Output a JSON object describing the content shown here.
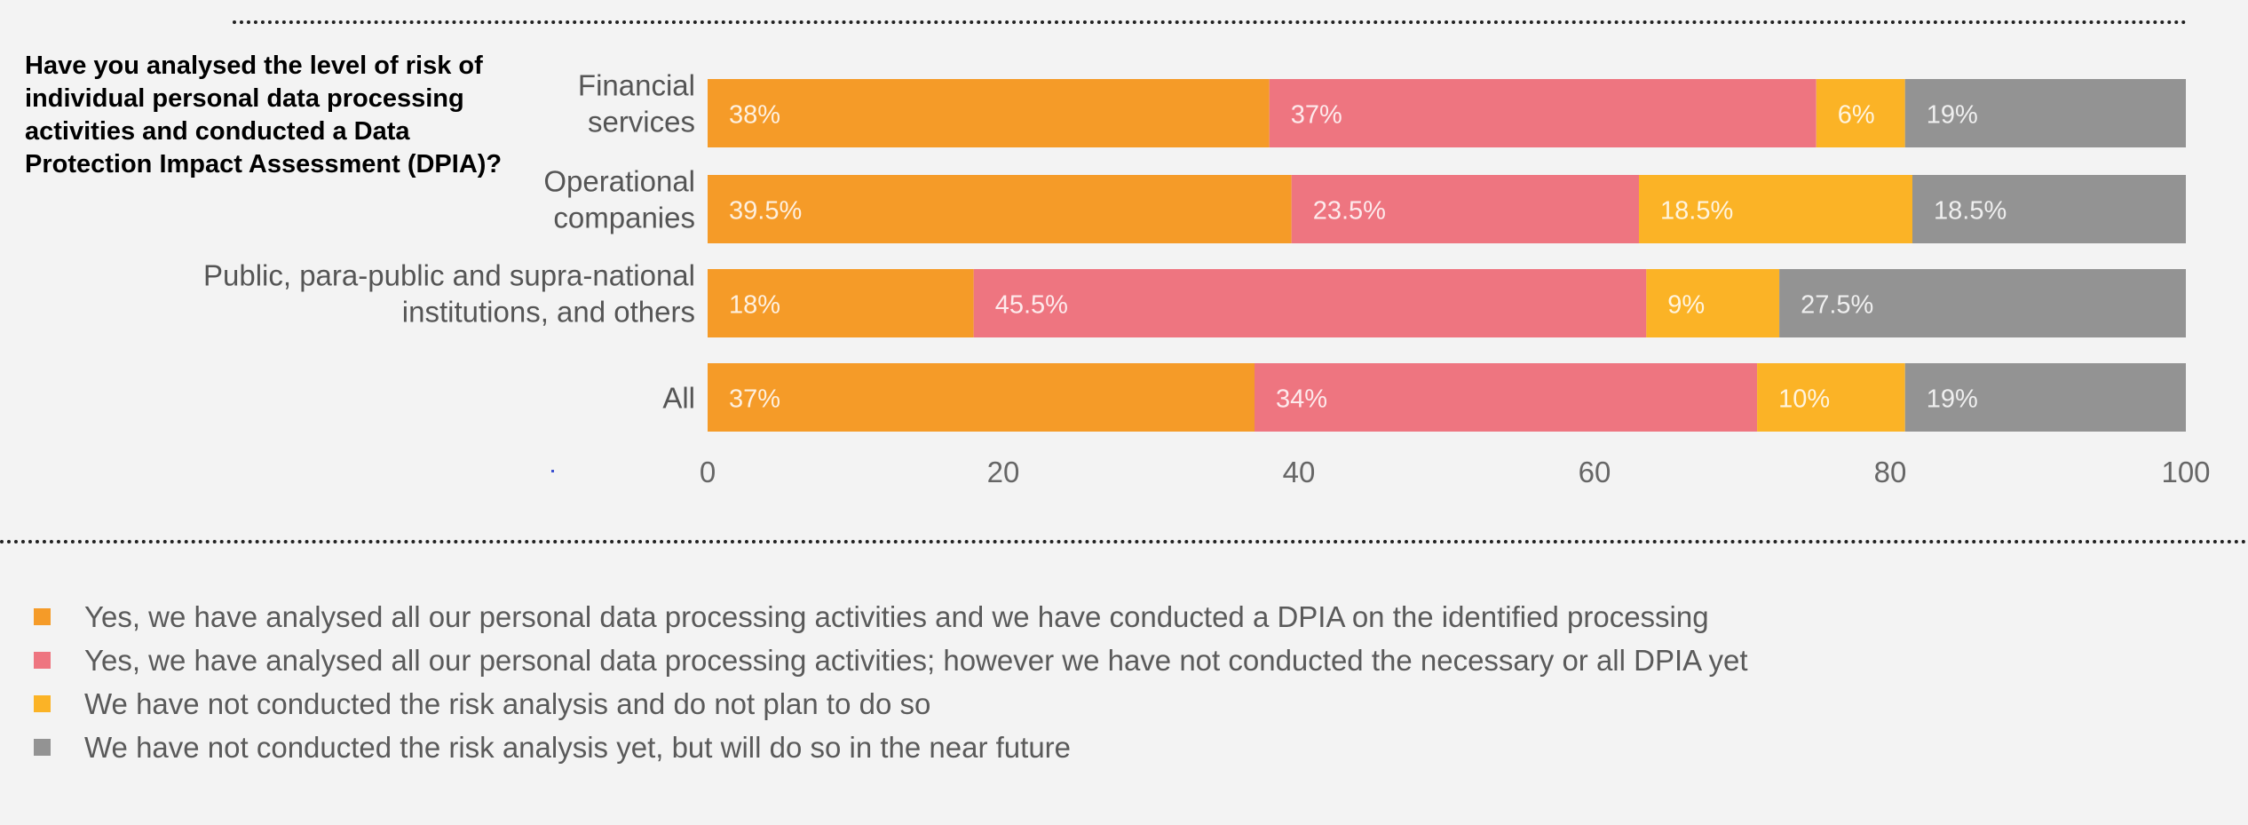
{
  "question": "Have you analysed the level of risk of individual personal data processing activities and conducted a Data Protection Impact Assessment (DPIA)?",
  "colors": {
    "yes_dpia": "#f59b28",
    "yes_no_dpia": "#ee7580",
    "no_no_plan": "#fbb326",
    "no_yet": "#939393"
  },
  "legend": [
    {
      "label": "Yes, we have analysed all our personal data processing activities and we have conducted a DPIA on the identified processing",
      "color": "#f59b28"
    },
    {
      "label": "Yes, we have analysed all our personal data processing activities; however we have not conducted the necessary or all DPIA yet",
      "color": "#ee7580"
    },
    {
      "label": "We have not conducted the risk analysis and do not plan to do so",
      "color": "#fbb326"
    },
    {
      "label": "We have not conducted the risk analysis yet, but will do so in the near future",
      "color": "#939393"
    }
  ],
  "chart_data": {
    "type": "bar",
    "orientation": "horizontal",
    "stacked": true,
    "categories": [
      [
        "Financial",
        "services"
      ],
      [
        "Operational",
        "companies"
      ],
      [
        "Public, para-public and supra-national",
        "institutions, and others"
      ],
      [
        "All"
      ]
    ],
    "series": [
      {
        "name": "Yes, we have analysed all our personal data processing activities and we have conducted a DPIA on the identified processing",
        "color": "#f59b28",
        "values": [
          38,
          39.5,
          18,
          37
        ],
        "labels": [
          "38%",
          "39.5%",
          "18%",
          "37%"
        ]
      },
      {
        "name": "Yes, we have analysed all our personal data processing activities; however we have not conducted the necessary or all DPIA yet",
        "color": "#ee7580",
        "values": [
          37,
          23.5,
          45.5,
          34
        ],
        "labels": [
          "37%",
          "23.5%",
          "45.5%",
          "34%"
        ]
      },
      {
        "name": "We have not conducted the risk analysis and do not plan to do so",
        "color": "#fbb326",
        "values": [
          6,
          18.5,
          9,
          10
        ],
        "labels": [
          "6%",
          "18.5%",
          "9%",
          "10%"
        ]
      },
      {
        "name": "We have not conducted the risk analysis yet, but will do so in the near future",
        "color": "#939393",
        "values": [
          19,
          18.5,
          27.5,
          19
        ],
        "labels": [
          "19%",
          "18.5%",
          "27.5%",
          "19%"
        ]
      }
    ],
    "xlim": [
      0,
      100
    ],
    "xticks": [
      "0",
      "20",
      "40",
      "60",
      "80",
      "100"
    ],
    "grid": false,
    "legend_position": "bottom"
  }
}
